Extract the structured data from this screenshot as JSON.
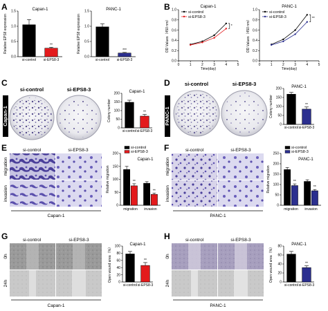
{
  "panels": {
    "A": {
      "label": "A"
    },
    "B": {
      "label": "B"
    },
    "C": {
      "label": "C",
      "cell_line": "Capan-1",
      "conditions": [
        "si-control",
        "si-EPS8-3"
      ]
    },
    "D": {
      "label": "D",
      "cell_line": "PANC-1",
      "conditions": [
        "si-control",
        "si-EPS8-3"
      ]
    },
    "E": {
      "label": "E",
      "conditions": [
        "si-control",
        "si-EPS8-3"
      ],
      "rows": [
        "migration",
        "invasion"
      ],
      "cell_line": "Capan-1"
    },
    "F": {
      "label": "F",
      "conditions": [
        "si-control",
        "si-EPS8-3"
      ],
      "rows": [
        "migration",
        "invasion"
      ],
      "cell_line": "PANC-1"
    },
    "G": {
      "label": "G",
      "conditions": [
        "si-control",
        "si-EPS8-3"
      ],
      "rows": [
        "0h",
        "24h"
      ],
      "cell_line": "Capan-1"
    },
    "H": {
      "label": "H",
      "conditions": [
        "si-control",
        "si-EPS8-3"
      ],
      "rows": [
        "0h",
        "24h"
      ],
      "cell_line": "PANC-1"
    }
  },
  "chart_data": [
    {
      "id": "A1",
      "type": "bar",
      "title": "Capan-1",
      "ylabel": "Relative EPS8 expression",
      "categories": [
        "si-control",
        "si-EPS8-3"
      ],
      "values": [
        1.05,
        0.28
      ],
      "errors": [
        0.17,
        0.03
      ],
      "ylim": [
        0,
        1.5
      ],
      "yticks": [
        "0.0",
        "0.5",
        "1.0",
        "1.5"
      ],
      "sig": "**",
      "colors": [
        "#000000",
        "#e31a1c"
      ]
    },
    {
      "id": "A2",
      "type": "bar",
      "title": "PANC-1",
      "ylabel": "Relative EPS8 expression",
      "categories": [
        "si-control",
        "si-EPS8-3"
      ],
      "values": [
        0.98,
        0.12
      ],
      "errors": [
        0.1,
        0.02
      ],
      "ylim": [
        0,
        1.5
      ],
      "yticks": [
        "0.0",
        "0.5",
        "1.0",
        "1.5"
      ],
      "sig": "***",
      "colors": [
        "#000000",
        "#2b2f8f"
      ]
    },
    {
      "id": "B1",
      "type": "line",
      "title": "Capan-1",
      "xlabel": "Time(day)",
      "ylabel": "OD Values（450 nm）",
      "x": [
        1,
        2,
        3,
        4
      ],
      "xlim": [
        0,
        5
      ],
      "xticks": [
        "0",
        "1",
        "2",
        "3",
        "4",
        "5"
      ],
      "ylim": [
        0,
        1.0
      ],
      "yticks": [
        "0.0",
        "0.2",
        "0.4",
        "0.6",
        "0.8",
        "1.0"
      ],
      "series": [
        {
          "name": "si-control",
          "values": [
            0.32,
            0.38,
            0.5,
            0.73
          ],
          "color": "#000000"
        },
        {
          "name": "si-EPS8-3",
          "values": [
            0.31,
            0.36,
            0.45,
            0.63
          ],
          "color": "#e31a1c"
        }
      ],
      "sig": "*",
      "legend": "top-left"
    },
    {
      "id": "B2",
      "type": "line",
      "title": "PANC-1",
      "xlabel": "Time(day)",
      "ylabel": "OD Values（450 nm）",
      "x": [
        1,
        2,
        3,
        4
      ],
      "xlim": [
        0,
        5
      ],
      "xticks": [
        "0",
        "1",
        "2",
        "3",
        "4",
        "5"
      ],
      "ylim": [
        0,
        1.0
      ],
      "yticks": [
        "0.0",
        "0.2",
        "0.4",
        "0.6",
        "0.8",
        "1.0"
      ],
      "series": [
        {
          "name": "si-control",
          "values": [
            0.32,
            0.42,
            0.6,
            0.9
          ],
          "color": "#000000"
        },
        {
          "name": "si-EPS8-3",
          "values": [
            0.31,
            0.38,
            0.52,
            0.76
          ],
          "color": "#2b2f8f"
        }
      ],
      "sig": "**",
      "legend": "top-left"
    },
    {
      "id": "C",
      "type": "bar",
      "title": "Capan-1",
      "ylabel": "Colony number",
      "categories": [
        "si-control",
        "si-EPS8-3"
      ],
      "values": [
        148,
        68
      ],
      "errors": [
        12,
        10
      ],
      "ylim": [
        0,
        200
      ],
      "yticks": [
        "0",
        "50",
        "100",
        "150",
        "200"
      ],
      "sig": "**",
      "colors": [
        "#000000",
        "#e31a1c"
      ]
    },
    {
      "id": "D",
      "type": "bar",
      "title": "PANC-1",
      "ylabel": "Colony number",
      "categories": [
        "si-control",
        "si-EPS8-3"
      ],
      "values": [
        168,
        85
      ],
      "errors": [
        10,
        12
      ],
      "ylim": [
        0,
        200
      ],
      "yticks": [
        "0",
        "50",
        "100",
        "150",
        "200"
      ],
      "sig": "**",
      "colors": [
        "#000000",
        "#2b2f8f"
      ]
    },
    {
      "id": "E",
      "type": "bar",
      "title": "Capan-1",
      "ylabel": "Relative migration",
      "categories": [
        "migration",
        "invasion"
      ],
      "series": [
        {
          "name": "si-control",
          "values": [
            138,
            85
          ],
          "errors": [
            12,
            6
          ],
          "color": "#000000"
        },
        {
          "name": "si-EPS8-3",
          "values": [
            75,
            42
          ],
          "errors": [
            8,
            5
          ],
          "color": "#e31a1c"
        }
      ],
      "ylim": [
        0,
        200
      ],
      "yticks": [
        "0",
        "50",
        "100",
        "150",
        "200"
      ],
      "sig": [
        "**",
        "**"
      ],
      "legend": "top"
    },
    {
      "id": "F",
      "type": "bar",
      "title": "PANC-1",
      "ylabel": "Relative migration",
      "categories": [
        "migration",
        "invasion"
      ],
      "series": [
        {
          "name": "si-control",
          "values": [
            172,
            115
          ],
          "errors": [
            10,
            8
          ],
          "color": "#000000"
        },
        {
          "name": "si-EPS8-3",
          "values": [
            95,
            70
          ],
          "errors": [
            8,
            6
          ],
          "color": "#2b2f8f"
        }
      ],
      "ylim": [
        0,
        250
      ],
      "yticks": [
        "0",
        "50",
        "100",
        "150",
        "200",
        "250"
      ],
      "sig": [
        "**",
        "**"
      ],
      "legend": "top"
    },
    {
      "id": "G",
      "type": "bar",
      "title": "Capan-1",
      "ylabel": "Open wound area（%）",
      "categories": [
        "si-control",
        "si-EPS8-3"
      ],
      "values": [
        78,
        46
      ],
      "errors": [
        7,
        8
      ],
      "ylim": [
        0,
        100
      ],
      "yticks": [
        "0",
        "20",
        "40",
        "60",
        "80",
        "100"
      ],
      "sig": "**",
      "colors": [
        "#000000",
        "#e31a1c"
      ]
    },
    {
      "id": "H",
      "type": "bar",
      "title": "PANC-1",
      "ylabel": "Open wound area（%）",
      "categories": [
        "si-control",
        "si-EPS8-3"
      ],
      "values": [
        62,
        32
      ],
      "errors": [
        6,
        4
      ],
      "ylim": [
        0,
        80
      ],
      "yticks": [
        "0",
        "20",
        "40",
        "60",
        "80"
      ],
      "sig": "**",
      "colors": [
        "#000000",
        "#2b2f8f"
      ]
    }
  ]
}
